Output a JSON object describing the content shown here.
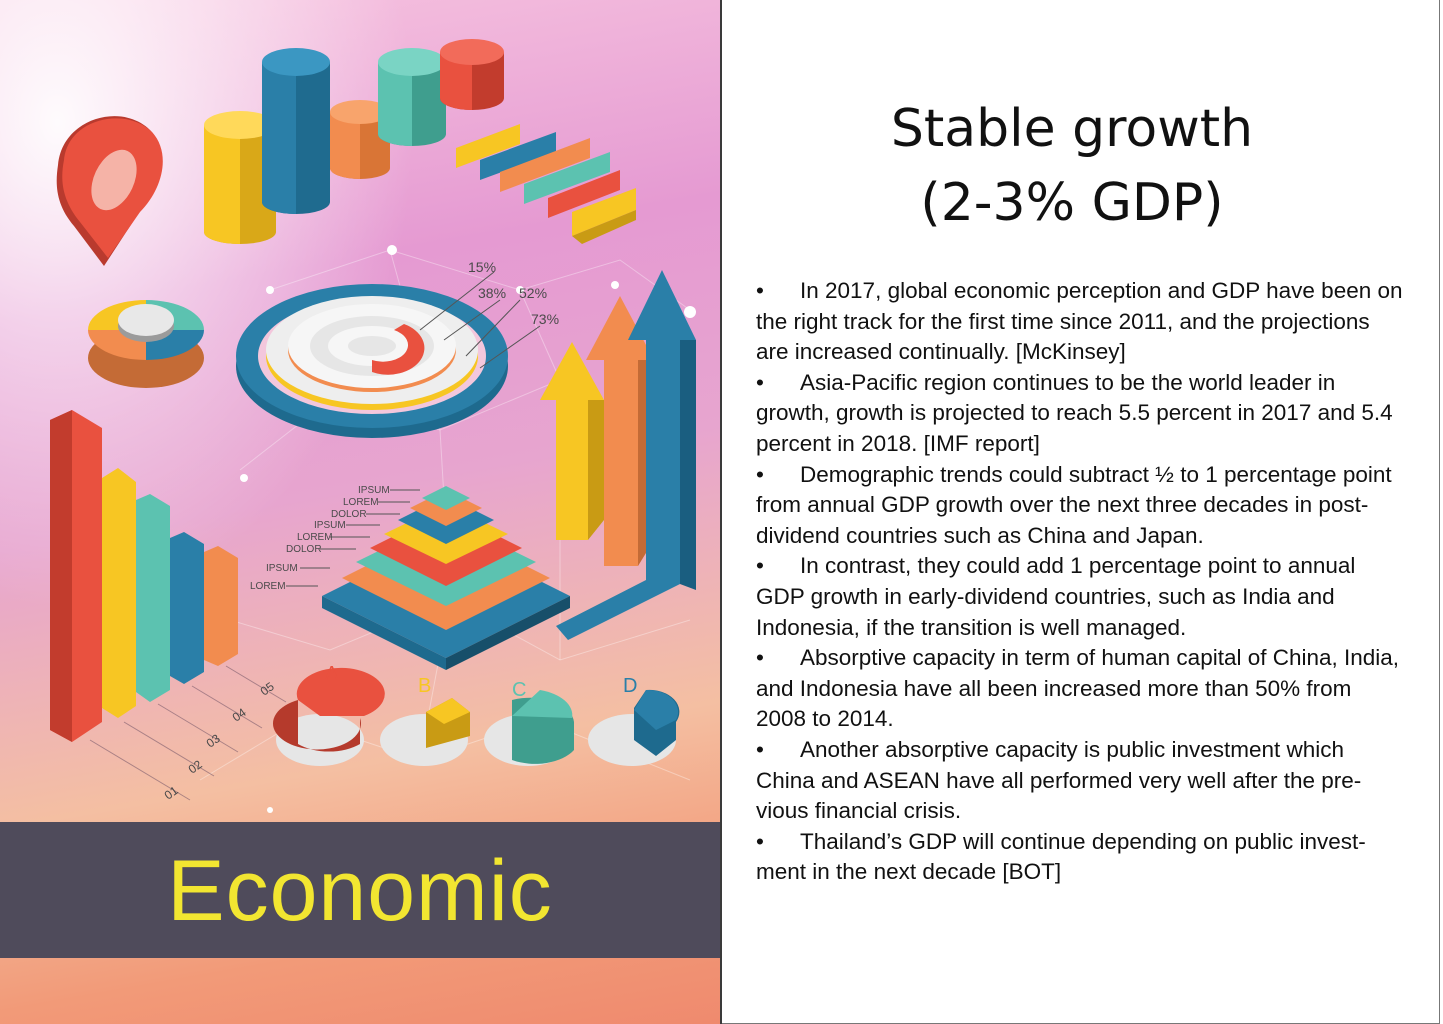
{
  "cover": {
    "title": "Economic",
    "ring_labels": [
      "15%",
      "38%",
      "52%",
      "73%"
    ],
    "pyramid_labels": [
      "IPSUM",
      "LOREM",
      "DOLOR",
      "IPSUM",
      "LOREM",
      "DOLOR",
      "IPSUM",
      "LOREM"
    ],
    "pie_labels": [
      "A",
      "B",
      "C",
      "D"
    ],
    "axis_ticks": [
      "01",
      "02",
      "03",
      "04",
      "05"
    ]
  },
  "article": {
    "heading_line1": "Stable growth",
    "heading_line2": "(2-3% GDP)",
    "bullet_symbol": "•",
    "bullets": [
      "In 2017, global economic perception and GDP have been on the right track for the first time since 2011, and the projections are increased continually. [McKinsey]",
      "Asia-Pacific region continues to be the world leader in growth, growth is projected to reach 5.5 percent in 2017 and 5.4 percent in 2018. [IMF report]",
      "Demographic trends could subtract ½ to 1 percentage point from annual GDP growth over the next three decades in post-dividend countries such as China and Japan.",
      "In contrast, they could add 1 percentage point to annual GDP growth in early-dividend countries, such as India and Indonesia, if the transition is well managed.",
      "Absorptive capacity in term of human capital of China, India, and Indonesia have all been increased more than 50% from 2008 to 2014.",
      "Another absorptive capacity is public investment which China and ASEAN have all performed very well after the pre-vious financial crisis.",
      "Thailand’s GDP will continue depending on public invest-ment in the next decade [BOT]"
    ]
  },
  "colors": {
    "red": "#e9513f",
    "yellow": "#f7c623",
    "blue": "#2a7fa8",
    "teal": "#5cc2b0",
    "orange": "#f28c4f",
    "banner": "#4f4b5b",
    "banner_text": "#f2e631"
  }
}
